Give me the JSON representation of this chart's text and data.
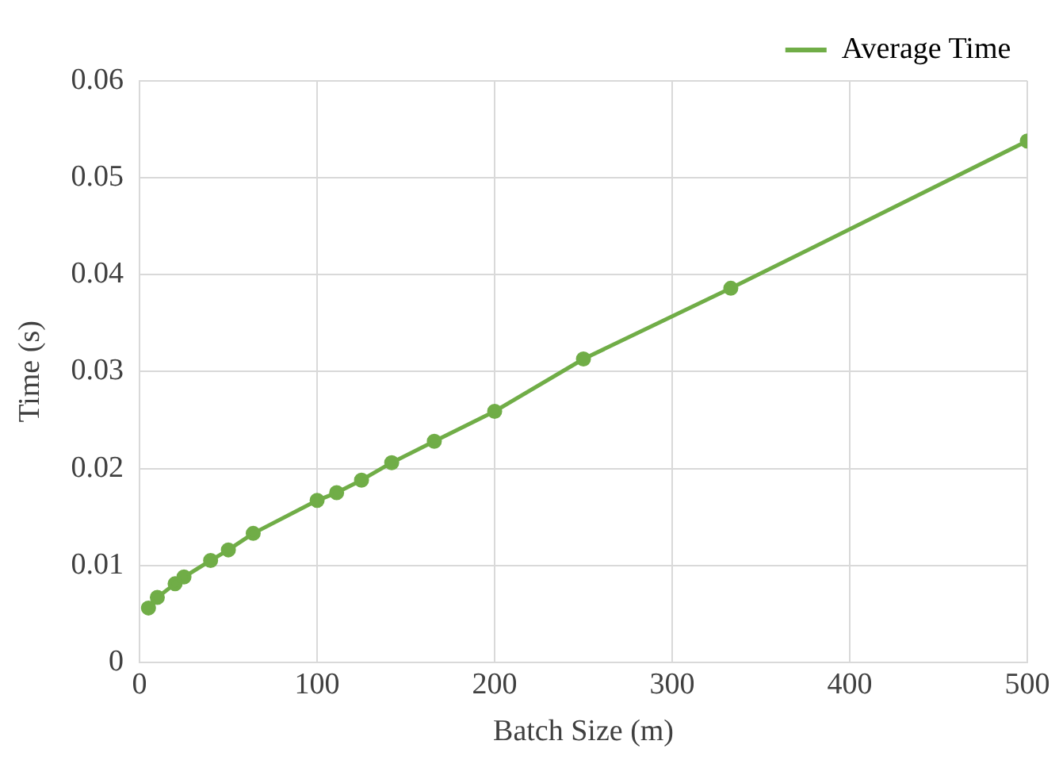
{
  "chart_data": {
    "type": "line",
    "xlabel": "Batch Size (m)",
    "ylabel": "Time (s)",
    "x": [
      5,
      10,
      20,
      25,
      40,
      50,
      64,
      100,
      111,
      125,
      142,
      166,
      200,
      250,
      333,
      500
    ],
    "series": [
      {
        "name": "Average Time",
        "color": "#70ad47",
        "values": [
          0.0056,
          0.0067,
          0.0081,
          0.0088,
          0.0105,
          0.0116,
          0.0133,
          0.0167,
          0.0175,
          0.0188,
          0.0206,
          0.0228,
          0.0259,
          0.0313,
          0.0386,
          0.0538
        ]
      }
    ],
    "xlim": [
      0,
      500
    ],
    "xticks": [
      0,
      100,
      200,
      300,
      400,
      500
    ],
    "ylim": [
      0,
      0.06
    ],
    "yticks": [
      0,
      0.01,
      0.02,
      0.03,
      0.04,
      0.05,
      0.06
    ],
    "grid": true,
    "legend": "top right",
    "marker": "circle",
    "line_style": "solid"
  }
}
